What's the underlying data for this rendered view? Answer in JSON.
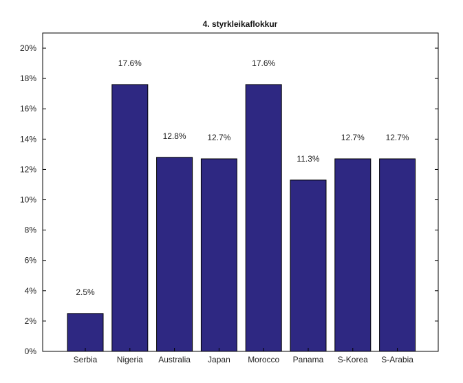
{
  "chart_data": {
    "type": "bar",
    "title": "4. styrkleikaflokkur",
    "xlabel": "",
    "ylabel": "",
    "categories": [
      "Serbia",
      "Nigeria",
      "Australia",
      "Japan",
      "Morocco",
      "Panama",
      "S-Korea",
      "S-Arabia"
    ],
    "values": [
      2.5,
      17.6,
      12.8,
      12.7,
      17.6,
      11.3,
      12.7,
      12.7
    ],
    "data_labels": [
      "2.5%",
      "17.6%",
      "12.8%",
      "12.7%",
      "17.6%",
      "11.3%",
      "12.7%",
      "12.7%"
    ],
    "ylim": [
      0,
      21
    ],
    "yticks": [
      0,
      2,
      4,
      6,
      8,
      10,
      12,
      14,
      16,
      18,
      20
    ],
    "ytick_labels": [
      "0%",
      "2%",
      "4%",
      "6%",
      "8%",
      "10%",
      "12%",
      "14%",
      "16%",
      "18%",
      "20%"
    ],
    "grid": false,
    "colors": {
      "bar": "#2e2882",
      "bar_edge": "#000000",
      "axis": "#000000"
    }
  }
}
